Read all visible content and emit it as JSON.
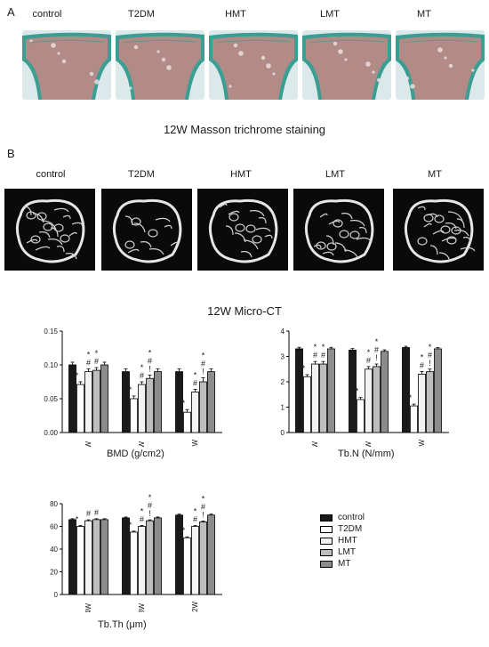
{
  "panelA": {
    "letter": "A",
    "groups": [
      "control",
      "T2DM",
      "HMT",
      "LMT",
      "MT"
    ],
    "caption": "12W Masson trichrome staining"
  },
  "panelB": {
    "letter": "B",
    "groups": [
      "control",
      "T2DM",
      "HMT",
      "LMT",
      "MT"
    ],
    "caption": "12W Micro-CT"
  },
  "legend": [
    "control",
    "T2DM",
    "HMT",
    "LMT",
    "MT"
  ],
  "colors": {
    "control": "#1a1a1a",
    "T2DM": "#ffffff",
    "HMT": "#f2f2f2",
    "LMT": "#bdbdbd",
    "MT": "#8c8c8c",
    "stain_tissue": "#b88a86",
    "stain_collagen": "#3b9e93",
    "stain_background": "#dbe9ea"
  },
  "chart_data": [
    {
      "type": "bar",
      "xlabel": "BMD (g/cm2)",
      "categories": [
        "4W",
        "8W",
        "12W"
      ],
      "ylim": [
        0,
        0.15
      ],
      "yticks": [
        "0.00",
        "0.05",
        "0.10",
        "0.15"
      ],
      "series": [
        {
          "name": "control",
          "values": [
            0.1,
            0.09,
            0.09
          ],
          "errors": [
            0.004,
            0.004,
            0.004
          ]
        },
        {
          "name": "T2DM",
          "values": [
            0.071,
            0.05,
            0.03
          ],
          "errors": [
            0.004,
            0.004,
            0.004
          ]
        },
        {
          "name": "HMT",
          "values": [
            0.09,
            0.071,
            0.06
          ],
          "errors": [
            0.004,
            0.004,
            0.004
          ]
        },
        {
          "name": "LMT",
          "values": [
            0.092,
            0.08,
            0.075
          ],
          "errors": [
            0.004,
            0.005,
            0.006
          ]
        },
        {
          "name": "MT",
          "values": [
            0.1,
            0.09,
            0.09
          ],
          "errors": [
            0.004,
            0.004,
            0.004
          ]
        }
      ],
      "annotations": [
        [
          "",
          "*",
          "*\n#",
          "*\n#",
          ""
        ],
        [
          "",
          "*",
          "*\n#",
          "*\n#\n!",
          ""
        ],
        [
          "",
          "*",
          "*\n#",
          "*\n#\n!",
          ""
        ]
      ]
    },
    {
      "type": "bar",
      "xlabel": "Tb.N (N/mm)",
      "categories": [
        "4W",
        "8W",
        "12W"
      ],
      "ylim": [
        0,
        4
      ],
      "yticks": [
        "0",
        "1",
        "2",
        "3",
        "4"
      ],
      "series": [
        {
          "name": "control",
          "values": [
            3.3,
            3.25,
            3.35
          ],
          "errors": [
            0.06,
            0.06,
            0.05
          ]
        },
        {
          "name": "T2DM",
          "values": [
            2.2,
            1.3,
            1.05
          ],
          "errors": [
            0.08,
            0.08,
            0.07
          ]
        },
        {
          "name": "HMT",
          "values": [
            2.7,
            2.5,
            2.3
          ],
          "errors": [
            0.1,
            0.1,
            0.1
          ]
        },
        {
          "name": "LMT",
          "values": [
            2.7,
            2.6,
            2.4
          ],
          "errors": [
            0.1,
            0.1,
            0.1
          ]
        },
        {
          "name": "MT",
          "values": [
            3.3,
            3.2,
            3.3
          ],
          "errors": [
            0.06,
            0.06,
            0.05
          ]
        }
      ],
      "annotations": [
        [
          "",
          "*",
          "*\n#",
          "*\n#",
          ""
        ],
        [
          "",
          "*",
          "*\n#",
          "*\n#\n!",
          ""
        ],
        [
          "",
          "*",
          "*\n#",
          "*\n#\n!",
          ""
        ]
      ]
    },
    {
      "type": "bar",
      "xlabel": "Tb.Th (μm)",
      "categories": [
        "4W",
        "8W",
        "12W"
      ],
      "ylim": [
        0,
        80
      ],
      "yticks": [
        "0",
        "20",
        "40",
        "60",
        "80"
      ],
      "series": [
        {
          "name": "control",
          "values": [
            66,
            67.5,
            70
          ],
          "errors": [
            0.8,
            0.8,
            0.8
          ]
        },
        {
          "name": "T2DM",
          "values": [
            60,
            55,
            50
          ],
          "errors": [
            0.8,
            0.8,
            0.8
          ]
        },
        {
          "name": "HMT",
          "values": [
            65,
            60,
            60
          ],
          "errors": [
            0.8,
            0.8,
            0.8
          ]
        },
        {
          "name": "LMT",
          "values": [
            66,
            65,
            64
          ],
          "errors": [
            0.8,
            0.8,
            0.8
          ]
        },
        {
          "name": "MT",
          "values": [
            66,
            67.5,
            70
          ],
          "errors": [
            0.8,
            0.8,
            0.8
          ]
        }
      ],
      "annotations": [
        [
          "",
          "*",
          "#",
          "#",
          ""
        ],
        [
          "",
          "*",
          "*\n#",
          "*\n#\n!",
          ""
        ],
        [
          "",
          "*",
          "*\n#",
          "*\n#\n!",
          ""
        ]
      ]
    }
  ]
}
